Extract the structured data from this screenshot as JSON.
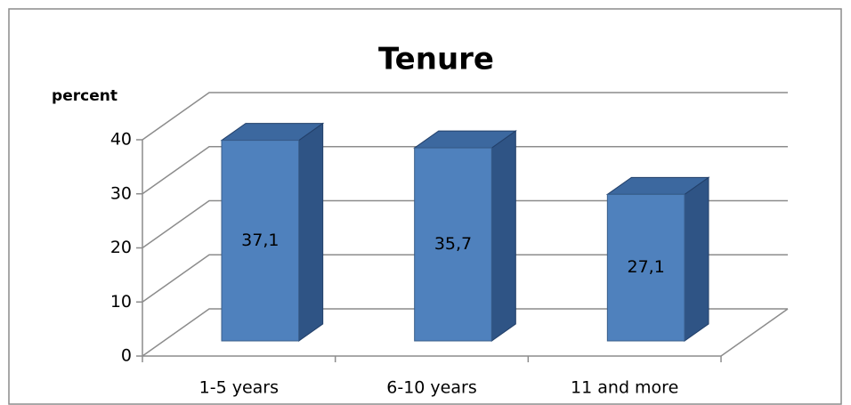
{
  "chart_data": {
    "type": "bar3d",
    "title": "Tenure",
    "y_label": "percent",
    "categories": [
      "1-5 years",
      "6-10 years",
      "11 and more"
    ],
    "values": [
      37.1,
      35.7,
      27.1
    ],
    "value_labels": [
      "37,1",
      "35,7",
      "27,1"
    ],
    "color": "#4f81bd",
    "ylim": [
      0,
      40
    ],
    "yticks": [
      0,
      10,
      20,
      30,
      40
    ],
    "grid": true
  }
}
